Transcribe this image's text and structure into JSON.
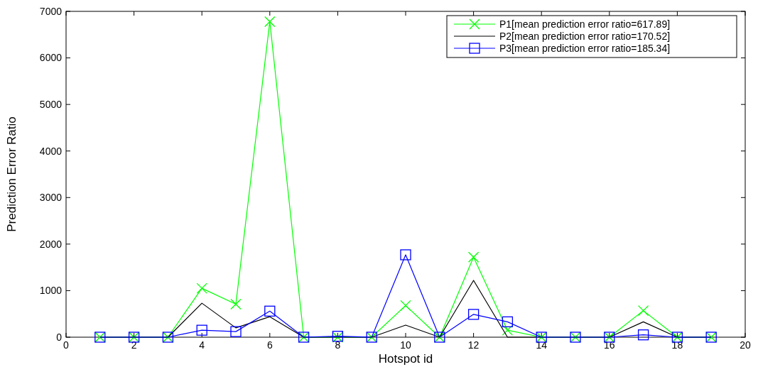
{
  "chart_data": {
    "type": "line",
    "xlabel": "Hotspot id",
    "ylabel": "Prediction Error Ratio",
    "x": [
      1,
      2,
      3,
      4,
      5,
      6,
      7,
      8,
      9,
      10,
      11,
      12,
      13,
      14,
      15,
      16,
      17,
      18,
      19
    ],
    "series": [
      {
        "name": "P1[mean prediction error ratio=617.89]",
        "color": "#00ff00",
        "marker": "cross",
        "values": [
          0,
          0,
          0,
          1050,
          710,
          6780,
          0,
          0,
          0,
          680,
          0,
          1720,
          150,
          0,
          0,
          0,
          570,
          0,
          0
        ]
      },
      {
        "name": "P2[mean prediction error ratio=170.52]",
        "color": "#000000",
        "marker": "none",
        "values": [
          0,
          0,
          0,
          730,
          200,
          440,
          0,
          0,
          0,
          260,
          0,
          1220,
          0,
          0,
          0,
          0,
          330,
          0,
          0
        ]
      },
      {
        "name": "P3[mean prediction error ratio=185.34]",
        "color": "#0000ff",
        "marker": "square",
        "values": [
          0,
          0,
          0,
          150,
          120,
          560,
          0,
          20,
          0,
          1770,
          0,
          490,
          330,
          0,
          0,
          0,
          50,
          0,
          0
        ]
      }
    ],
    "xlim": [
      0,
      20
    ],
    "xticks": [
      0,
      2,
      4,
      6,
      8,
      10,
      12,
      14,
      16,
      18,
      20
    ],
    "ylim": [
      0,
      7000
    ],
    "yticks": [
      0,
      1000,
      2000,
      3000,
      4000,
      5000,
      6000,
      7000
    ],
    "grid": false,
    "legend": "top right"
  }
}
